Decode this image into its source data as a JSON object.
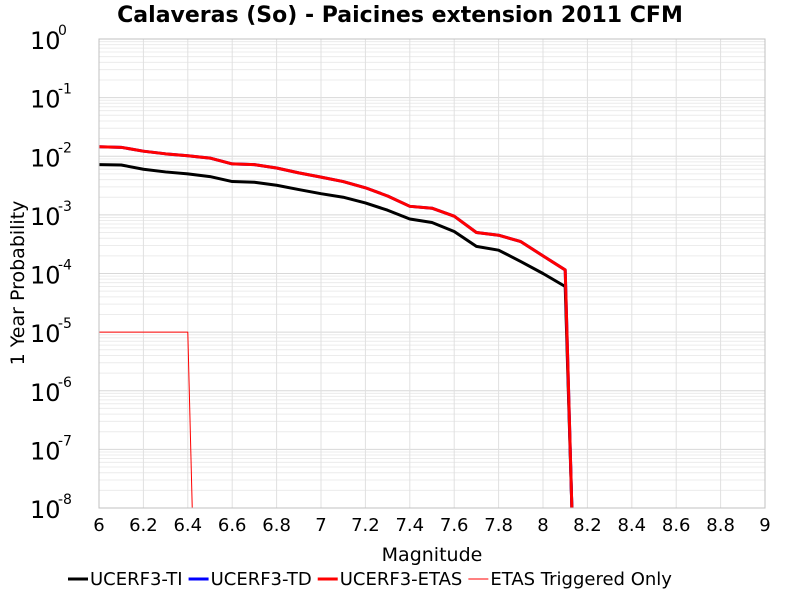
{
  "chart_data": {
    "type": "line",
    "title": "Calaveras (So) - Paicines extension 2011 CFM",
    "xlabel": "Magnitude",
    "ylabel": "1 Year Probability",
    "xlim": [
      6,
      9
    ],
    "ylim": [
      1e-08,
      1
    ],
    "yscale": "log",
    "grid": true,
    "legend_position": "bottom",
    "x_ticks": [
      "6",
      "6.2",
      "6.4",
      "6.6",
      "6.8",
      "7",
      "7.2",
      "7.4",
      "7.6",
      "7.8",
      "8",
      "8.2",
      "8.4",
      "8.6",
      "8.8",
      "9"
    ],
    "y_ticks": [
      {
        "base": "10",
        "exp": "0",
        "value": 1
      },
      {
        "base": "10",
        "exp": "-1",
        "value": 0.1
      },
      {
        "base": "10",
        "exp": "-2",
        "value": 0.01
      },
      {
        "base": "10",
        "exp": "-3",
        "value": 0.001
      },
      {
        "base": "10",
        "exp": "-4",
        "value": 0.0001
      },
      {
        "base": "10",
        "exp": "-5",
        "value": 1e-05
      },
      {
        "base": "10",
        "exp": "-6",
        "value": 1e-06
      },
      {
        "base": "10",
        "exp": "-7",
        "value": 1e-07
      },
      {
        "base": "10",
        "exp": "-8",
        "value": 1e-08
      }
    ],
    "series": [
      {
        "name": "UCERF3-TI",
        "color": "#000000",
        "width": 3,
        "x": [
          6.0,
          6.1,
          6.2,
          6.3,
          6.4,
          6.5,
          6.6,
          6.7,
          6.8,
          6.9,
          7.0,
          7.1,
          7.2,
          7.3,
          7.4,
          7.5,
          7.6,
          7.7,
          7.8,
          7.9,
          8.0,
          8.1,
          8.13
        ],
        "y": [
          0.0072,
          0.0071,
          0.006,
          0.0054,
          0.005,
          0.0045,
          0.0037,
          0.0036,
          0.0032,
          0.0027,
          0.0023,
          0.002,
          0.0016,
          0.0012,
          0.00085,
          0.00074,
          0.00052,
          0.00029,
          0.00025,
          0.00016,
          0.0001,
          6e-05,
          1e-08
        ]
      },
      {
        "name": "UCERF3-TD",
        "color": "#0000ff",
        "width": 3,
        "x": [
          6.0,
          6.1,
          6.2,
          6.3,
          6.4,
          6.5,
          6.6,
          6.7,
          6.8,
          6.9,
          7.0,
          7.1,
          7.2,
          7.3,
          7.4,
          7.5,
          7.6,
          7.7,
          7.8,
          7.9,
          8.0,
          8.1,
          8.13
        ],
        "y": [
          0.0145,
          0.0142,
          0.0122,
          0.011,
          0.0102,
          0.0093,
          0.0074,
          0.0072,
          0.0063,
          0.0052,
          0.0044,
          0.0037,
          0.0029,
          0.0021,
          0.0014,
          0.0013,
          0.00095,
          0.0005,
          0.00045,
          0.00035,
          0.0002,
          0.000115,
          1e-08
        ]
      },
      {
        "name": "UCERF3-ETAS",
        "color": "#ff0000",
        "width": 3,
        "x": [
          6.0,
          6.1,
          6.2,
          6.3,
          6.4,
          6.5,
          6.6,
          6.7,
          6.8,
          6.9,
          7.0,
          7.1,
          7.2,
          7.3,
          7.4,
          7.5,
          7.6,
          7.7,
          7.8,
          7.9,
          8.0,
          8.1,
          8.13
        ],
        "y": [
          0.0145,
          0.0142,
          0.0122,
          0.011,
          0.0102,
          0.0093,
          0.0074,
          0.0072,
          0.0063,
          0.0052,
          0.0044,
          0.0037,
          0.0029,
          0.0021,
          0.0014,
          0.0013,
          0.00095,
          0.0005,
          0.00045,
          0.00035,
          0.0002,
          0.000115,
          1e-08
        ]
      },
      {
        "name": "ETAS Triggered Only",
        "color": "#ff0000",
        "width": 1,
        "x": [
          6.0,
          6.1,
          6.2,
          6.3,
          6.4,
          6.42
        ],
        "y": [
          1e-05,
          1e-05,
          1e-05,
          1e-05,
          1e-05,
          1e-08
        ]
      }
    ]
  }
}
